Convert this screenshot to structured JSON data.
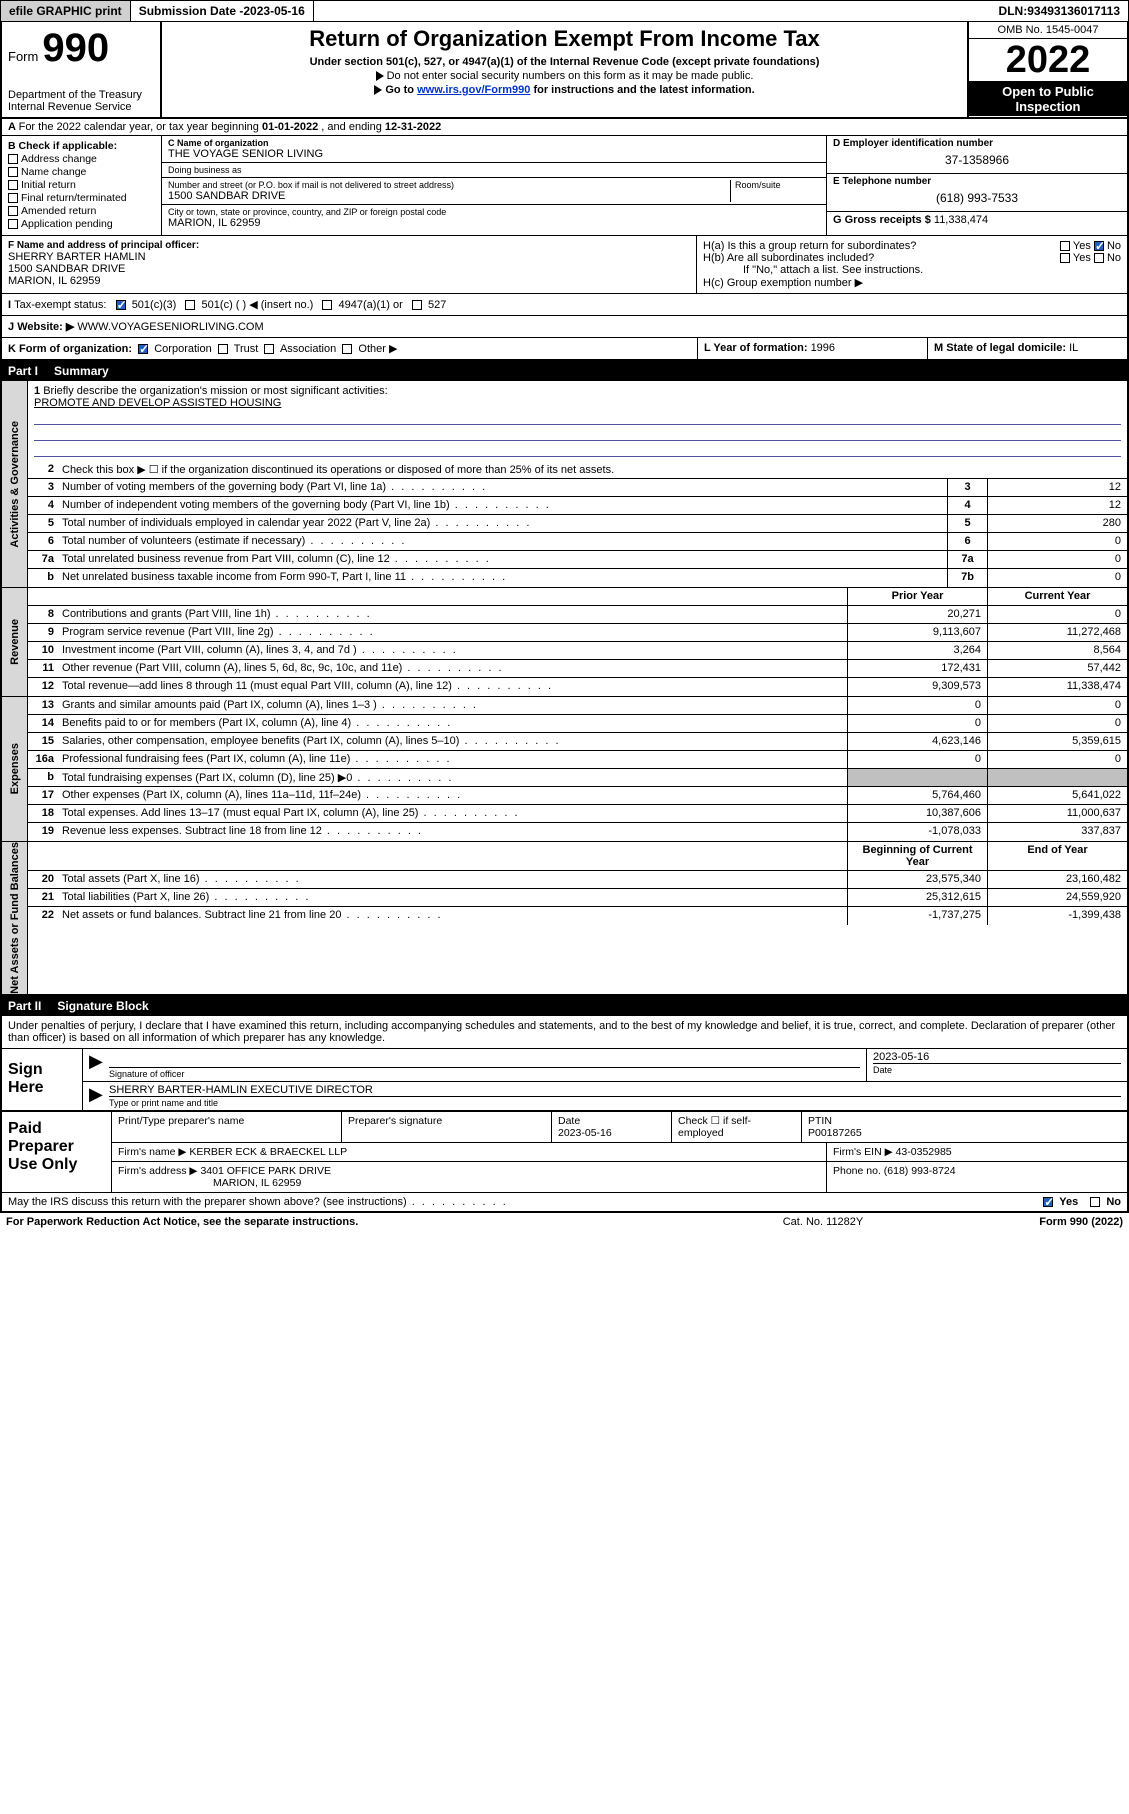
{
  "topbar": {
    "efile_btn": "efile GRAPHIC print",
    "submission_label": "Submission Date - ",
    "submission_date": "2023-05-16",
    "dln_label": "DLN: ",
    "dln": "93493136017113"
  },
  "header": {
    "form_word": "Form",
    "form_number": "990",
    "dept": "Department of the Treasury\nInternal Revenue Service",
    "title": "Return of Organization Exempt From Income Tax",
    "subtitle": "Under section 501(c), 527, or 4947(a)(1) of the Internal Revenue Code (except private foundations)",
    "note": "Do not enter social security numbers on this form as it may be made public.",
    "goto_pre": "Go to ",
    "goto_link": "www.irs.gov/Form990",
    "goto_post": " for instructions and the latest information.",
    "omb": "OMB No. 1545-0047",
    "year": "2022",
    "inspection": "Open to Public Inspection"
  },
  "lineA": {
    "text_pre": "For the 2022 calendar year, or tax year beginning ",
    "begin": "01-01-2022",
    "mid": " , and ending ",
    "end": "12-31-2022"
  },
  "sectionB": {
    "label": "B Check if applicable:",
    "opts": [
      "Address change",
      "Name change",
      "Initial return",
      "Final return/terminated",
      "Amended return",
      "Application pending"
    ]
  },
  "sectionC": {
    "name_lbl": "C Name of organization",
    "name": "THE VOYAGE SENIOR LIVING",
    "dba_lbl": "Doing business as",
    "dba": "",
    "addr_lbl": "Number and street (or P.O. box if mail is not delivered to street address)",
    "room_lbl": "Room/suite",
    "addr": "1500 SANDBAR DRIVE",
    "city_lbl": "City or town, state or province, country, and ZIP or foreign postal code",
    "city": "MARION, IL  62959"
  },
  "sectionD": {
    "lbl": "D Employer identification number",
    "val": "37-1358966"
  },
  "sectionE": {
    "lbl": "E Telephone number",
    "val": "(618) 993-7533"
  },
  "sectionG": {
    "lbl": "G Gross receipts $ ",
    "val": "11,338,474"
  },
  "sectionF": {
    "lbl": "F Name and address of principal officer:",
    "name": "SHERRY BARTER HAMLIN",
    "addr1": "1500 SANDBAR DRIVE",
    "addr2": "MARION, IL  62959"
  },
  "sectionH": {
    "ha": "H(a)  Is this a group return for subordinates?",
    "ha_yes": "Yes",
    "ha_no": "No",
    "hb": "H(b)  Are all subordinates included?",
    "hb_yes": "Yes",
    "hb_no": "No",
    "hb_note": "If \"No,\" attach a list. See instructions.",
    "hc": "H(c)  Group exemption number ▶"
  },
  "lineI": {
    "lbl": "Tax-exempt status:",
    "opts": [
      "501(c)(3)",
      "501(c) (  ) ◀ (insert no.)",
      "4947(a)(1) or",
      "527"
    ]
  },
  "lineJ": {
    "lbl": "Website: ▶",
    "val": "WWW.VOYAGESENIORLIVING.COM"
  },
  "lineK": {
    "lbl": "K Form of organization:",
    "opts": [
      "Corporation",
      "Trust",
      "Association",
      "Other ▶"
    ],
    "L": "L Year of formation: ",
    "L_val": "1996",
    "M": "M State of legal domicile: ",
    "M_val": "IL"
  },
  "part1": {
    "no": "Part I",
    "title": "Summary"
  },
  "summary": {
    "tab1": "Activities & Governance",
    "tab2": "Revenue",
    "tab3": "Expenses",
    "tab4": "Net Assets or Fund Balances",
    "q1": "Briefly describe the organization's mission or most significant activities:",
    "mission": "PROMOTE AND DEVELOP ASSISTED HOUSING",
    "q2": "Check this box ▶ ☐  if the organization discontinued its operations or disposed of more than 25% of its net assets.",
    "rows_gov": [
      {
        "n": "3",
        "t": "Number of voting members of the governing body (Part VI, line 1a)",
        "b": "3",
        "v": "12"
      },
      {
        "n": "4",
        "t": "Number of independent voting members of the governing body (Part VI, line 1b)",
        "b": "4",
        "v": "12"
      },
      {
        "n": "5",
        "t": "Total number of individuals employed in calendar year 2022 (Part V, line 2a)",
        "b": "5",
        "v": "280"
      },
      {
        "n": "6",
        "t": "Total number of volunteers (estimate if necessary)",
        "b": "6",
        "v": "0"
      },
      {
        "n": "7a",
        "t": "Total unrelated business revenue from Part VIII, column (C), line 12",
        "b": "7a",
        "v": "0"
      },
      {
        "n": "b",
        "t": "Net unrelated business taxable income from Form 990-T, Part I, line 11",
        "b": "7b",
        "v": "0"
      }
    ],
    "hdr_prior": "Prior Year",
    "hdr_curr": "Current Year",
    "rows_rev": [
      {
        "n": "8",
        "t": "Contributions and grants (Part VIII, line 1h)",
        "p": "20,271",
        "c": "0"
      },
      {
        "n": "9",
        "t": "Program service revenue (Part VIII, line 2g)",
        "p": "9,113,607",
        "c": "11,272,468"
      },
      {
        "n": "10",
        "t": "Investment income (Part VIII, column (A), lines 3, 4, and 7d )",
        "p": "3,264",
        "c": "8,564"
      },
      {
        "n": "11",
        "t": "Other revenue (Part VIII, column (A), lines 5, 6d, 8c, 9c, 10c, and 11e)",
        "p": "172,431",
        "c": "57,442"
      },
      {
        "n": "12",
        "t": "Total revenue—add lines 8 through 11 (must equal Part VIII, column (A), line 12)",
        "p": "9,309,573",
        "c": "11,338,474"
      }
    ],
    "rows_exp": [
      {
        "n": "13",
        "t": "Grants and similar amounts paid (Part IX, column (A), lines 1–3 )",
        "p": "0",
        "c": "0"
      },
      {
        "n": "14",
        "t": "Benefits paid to or for members (Part IX, column (A), line 4)",
        "p": "0",
        "c": "0"
      },
      {
        "n": "15",
        "t": "Salaries, other compensation, employee benefits (Part IX, column (A), lines 5–10)",
        "p": "4,623,146",
        "c": "5,359,615"
      },
      {
        "n": "16a",
        "t": "Professional fundraising fees (Part IX, column (A), line 11e)",
        "p": "0",
        "c": "0"
      },
      {
        "n": "b",
        "t": "Total fundraising expenses (Part IX, column (D), line 25) ▶0",
        "p": "",
        "c": "",
        "gray": true
      },
      {
        "n": "17",
        "t": "Other expenses (Part IX, column (A), lines 11a–11d, 11f–24e)",
        "p": "5,764,460",
        "c": "5,641,022"
      },
      {
        "n": "18",
        "t": "Total expenses. Add lines 13–17 (must equal Part IX, column (A), line 25)",
        "p": "10,387,606",
        "c": "11,000,637"
      },
      {
        "n": "19",
        "t": "Revenue less expenses. Subtract line 18 from line 12",
        "p": "-1,078,033",
        "c": "337,837"
      }
    ],
    "hdr_beg": "Beginning of Current Year",
    "hdr_end": "End of Year",
    "rows_net": [
      {
        "n": "20",
        "t": "Total assets (Part X, line 16)",
        "p": "23,575,340",
        "c": "23,160,482"
      },
      {
        "n": "21",
        "t": "Total liabilities (Part X, line 26)",
        "p": "25,312,615",
        "c": "24,559,920"
      },
      {
        "n": "22",
        "t": "Net assets or fund balances. Subtract line 21 from line 20",
        "p": "-1,737,275",
        "c": "-1,399,438"
      }
    ]
  },
  "part2": {
    "no": "Part II",
    "title": "Signature Block"
  },
  "sig": {
    "decl": "Under penalties of perjury, I declare that I have examined this return, including accompanying schedules and statements, and to the best of my knowledge and belief, it is true, correct, and complete. Declaration of preparer (other than officer) is based on all information of which preparer has any knowledge.",
    "sign_here": "Sign Here",
    "sig_officer_lbl": "Signature of officer",
    "date_lbl": "Date",
    "date_val": "2023-05-16",
    "name_title": "SHERRY BARTER-HAMLIN  EXECUTIVE DIRECTOR",
    "name_title_lbl": "Type or print name and title"
  },
  "preparer": {
    "lbl": "Paid Preparer Use Only",
    "h1": "Print/Type preparer's name",
    "h2": "Preparer's signature",
    "h3": "Date",
    "h3v": "2023-05-16",
    "h4": "Check ☐ if self-employed",
    "h5": "PTIN",
    "h5v": "P00187265",
    "firm_lbl": "Firm's name     ▶",
    "firm": "KERBER ECK & BRAECKEL LLP",
    "ein_lbl": "Firm's EIN ▶",
    "ein": "43-0352985",
    "addr_lbl": "Firm's address ▶",
    "addr1": "3401 OFFICE PARK DRIVE",
    "addr2": "MARION, IL  62959",
    "phone_lbl": "Phone no. ",
    "phone": "(618) 993-8724"
  },
  "footer": {
    "discuss": "May the IRS discuss this return with the preparer shown above? (see instructions)",
    "yes": "Yes",
    "no": "No",
    "paperwork": "For Paperwork Reduction Act Notice, see the separate instructions.",
    "cat": "Cat. No. 11282Y",
    "form": "Form 990 (2022)"
  }
}
